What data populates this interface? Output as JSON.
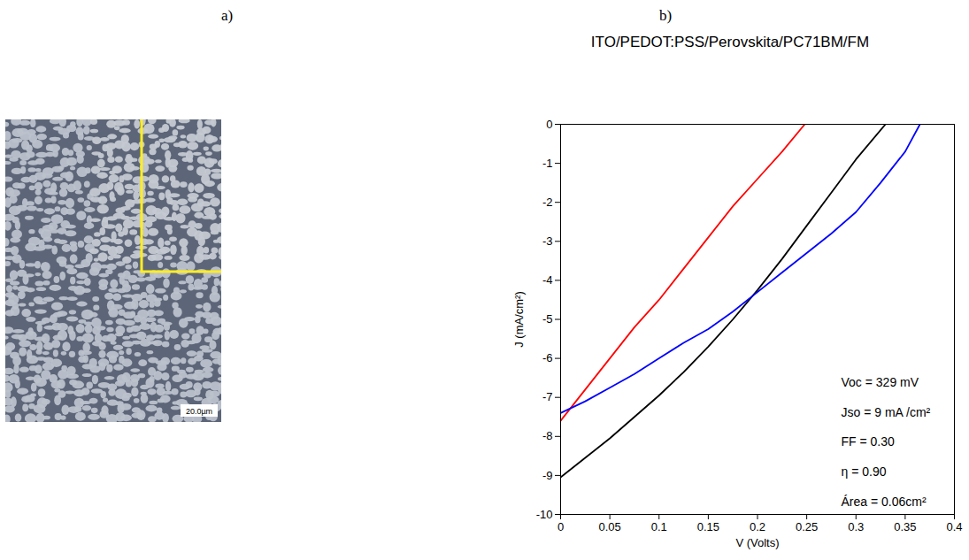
{
  "panel_labels": [
    "a)",
    "b)"
  ],
  "micrograph": {
    "scale_bar": "20.0µm"
  },
  "chart_data": {
    "type": "line",
    "title": "ITO/PEDOT:PSS/Perovskita/PC71BM/FM",
    "x_label": "V (Volts)",
    "y_label": "J (mA/cm²)",
    "xlim": [
      0,
      0.4
    ],
    "xticks": [
      0,
      0.05,
      0.1,
      0.15,
      0.2,
      0.25,
      0.3,
      0.35,
      0.4
    ],
    "ylim": [
      -10,
      0
    ],
    "yticks": [
      -10,
      -9,
      -8,
      -7,
      -6,
      -5,
      -4,
      -3,
      -2,
      -1,
      0
    ],
    "grid": false,
    "series": [
      {
        "color": "#ff0000",
        "x": [
          0,
          0.025,
          0.05,
          0.075,
          0.1,
          0.125,
          0.15,
          0.175,
          0.2,
          0.225,
          0.248
        ],
        "values": [
          -7.6,
          -6.8,
          -6.0,
          -5.2,
          -4.5,
          -3.7,
          -2.9,
          -2.1,
          -1.4,
          -0.7,
          0
        ]
      },
      {
        "color": "#000000",
        "x": [
          0,
          0.025,
          0.05,
          0.075,
          0.1,
          0.125,
          0.15,
          0.175,
          0.2,
          0.225,
          0.25,
          0.275,
          0.3,
          0.33
        ],
        "values": [
          -9.05,
          -8.55,
          -8.05,
          -7.5,
          -6.95,
          -6.35,
          -5.7,
          -5.0,
          -4.25,
          -3.45,
          -2.6,
          -1.75,
          -0.9,
          0
        ]
      },
      {
        "color": "#0000ff",
        "x": [
          0,
          0.025,
          0.05,
          0.075,
          0.1,
          0.125,
          0.15,
          0.175,
          0.2,
          0.225,
          0.25,
          0.275,
          0.3,
          0.325,
          0.35,
          0.365
        ],
        "values": [
          -7.4,
          -7.1,
          -6.75,
          -6.4,
          -6.0,
          -5.6,
          -5.25,
          -4.8,
          -4.3,
          -3.8,
          -3.3,
          -2.8,
          -2.25,
          -1.5,
          -0.7,
          0
        ]
      }
    ],
    "annotations": [
      "Voc = 329 mV",
      "Jso = 9 mA /cm²",
      "FF = 0.30",
      "η = 0.90",
      "Área = 0.06cm²"
    ]
  }
}
